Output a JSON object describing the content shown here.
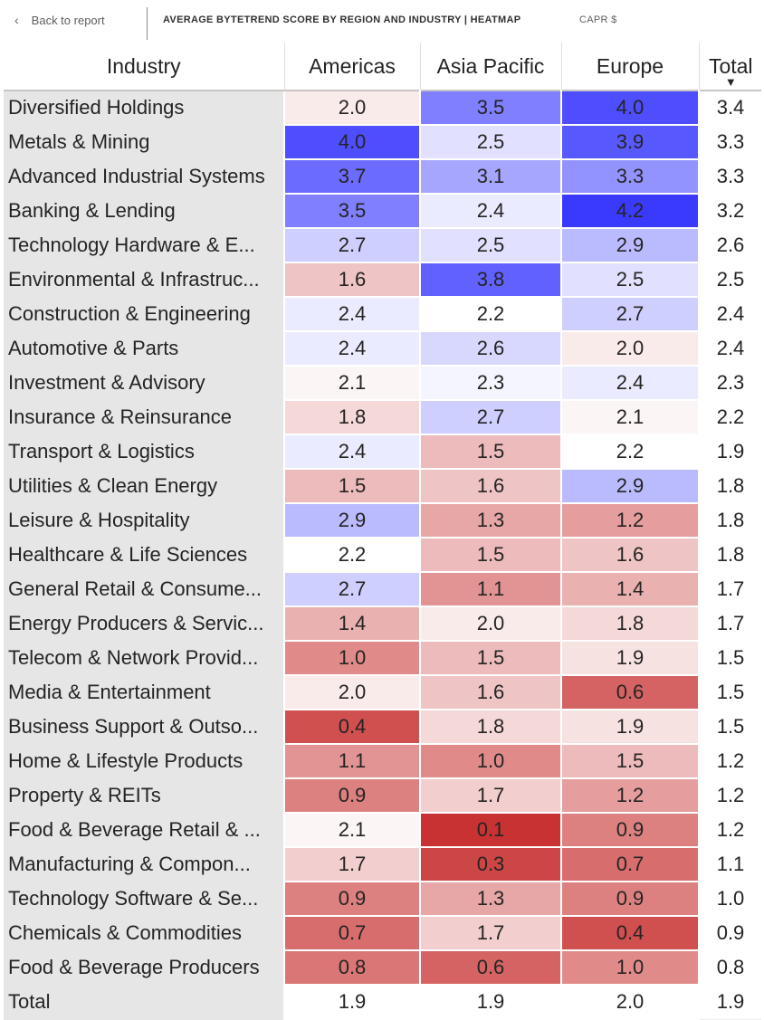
{
  "header": {
    "back_label": "Back to report",
    "back_icon": "chevron-left-icon",
    "title": "AVERAGE BYTETREND SCORE BY REGION AND INDUSTRY | HEATMAP",
    "subtitle": "CAPR $"
  },
  "table": {
    "columns": [
      "Industry",
      "Americas",
      "Asia Pacific",
      "Europe",
      "Total"
    ],
    "sort_icon": "sort-descending-icon",
    "sorted_column": "Total",
    "color_scale": {
      "min_color": "#c83232",
      "mid_color": "#ffffff",
      "max_color": "#3a3aff",
      "min": 0.1,
      "mid": 2.2,
      "max": 4.2
    },
    "rows": [
      {
        "industry": "Diversified Holdings",
        "americas": "2.0",
        "asia_pacific": "3.5",
        "europe": "4.0",
        "total": "3.4"
      },
      {
        "industry": "Metals & Mining",
        "americas": "4.0",
        "asia_pacific": "2.5",
        "europe": "3.9",
        "total": "3.3"
      },
      {
        "industry": "Advanced Industrial Systems",
        "americas": "3.7",
        "asia_pacific": "3.1",
        "europe": "3.3",
        "total": "3.3"
      },
      {
        "industry": "Banking & Lending",
        "americas": "3.5",
        "asia_pacific": "2.4",
        "europe": "4.2",
        "total": "3.2"
      },
      {
        "industry": "Technology Hardware & E...",
        "americas": "2.7",
        "asia_pacific": "2.5",
        "europe": "2.9",
        "total": "2.6"
      },
      {
        "industry": "Environmental & Infrastruc...",
        "americas": "1.6",
        "asia_pacific": "3.8",
        "europe": "2.5",
        "total": "2.5"
      },
      {
        "industry": "Construction & Engineering",
        "americas": "2.4",
        "asia_pacific": "2.2",
        "europe": "2.7",
        "total": "2.4"
      },
      {
        "industry": "Automotive & Parts",
        "americas": "2.4",
        "asia_pacific": "2.6",
        "europe": "2.0",
        "total": "2.4"
      },
      {
        "industry": "Investment & Advisory",
        "americas": "2.1",
        "asia_pacific": "2.3",
        "europe": "2.4",
        "total": "2.3"
      },
      {
        "industry": "Insurance & Reinsurance",
        "americas": "1.8",
        "asia_pacific": "2.7",
        "europe": "2.1",
        "total": "2.2"
      },
      {
        "industry": "Transport & Logistics",
        "americas": "2.4",
        "asia_pacific": "1.5",
        "europe": "2.2",
        "total": "1.9"
      },
      {
        "industry": "Utilities & Clean Energy",
        "americas": "1.5",
        "asia_pacific": "1.6",
        "europe": "2.9",
        "total": "1.8"
      },
      {
        "industry": "Leisure & Hospitality",
        "americas": "2.9",
        "asia_pacific": "1.3",
        "europe": "1.2",
        "total": "1.8"
      },
      {
        "industry": "Healthcare & Life Sciences",
        "americas": "2.2",
        "asia_pacific": "1.5",
        "europe": "1.6",
        "total": "1.8"
      },
      {
        "industry": "General Retail & Consume...",
        "americas": "2.7",
        "asia_pacific": "1.1",
        "europe": "1.4",
        "total": "1.7"
      },
      {
        "industry": "Energy Producers & Servic...",
        "americas": "1.4",
        "asia_pacific": "2.0",
        "europe": "1.8",
        "total": "1.7"
      },
      {
        "industry": "Telecom & Network Provid...",
        "americas": "1.0",
        "asia_pacific": "1.5",
        "europe": "1.9",
        "total": "1.5"
      },
      {
        "industry": "Media & Entertainment",
        "americas": "2.0",
        "asia_pacific": "1.6",
        "europe": "0.6",
        "total": "1.5"
      },
      {
        "industry": "Business Support & Outso...",
        "americas": "0.4",
        "asia_pacific": "1.8",
        "europe": "1.9",
        "total": "1.5"
      },
      {
        "industry": "Home & Lifestyle Products",
        "americas": "1.1",
        "asia_pacific": "1.0",
        "europe": "1.5",
        "total": "1.2"
      },
      {
        "industry": "Property & REITs",
        "americas": "0.9",
        "asia_pacific": "1.7",
        "europe": "1.2",
        "total": "1.2"
      },
      {
        "industry": "Food & Beverage Retail & ...",
        "americas": "2.1",
        "asia_pacific": "0.1",
        "europe": "0.9",
        "total": "1.2"
      },
      {
        "industry": "Manufacturing & Compon...",
        "americas": "1.7",
        "asia_pacific": "0.3",
        "europe": "0.7",
        "total": "1.1"
      },
      {
        "industry": "Technology Software & Se...",
        "americas": "0.9",
        "asia_pacific": "1.3",
        "europe": "0.9",
        "total": "1.0"
      },
      {
        "industry": "Chemicals & Commodities",
        "americas": "0.7",
        "asia_pacific": "1.7",
        "europe": "0.4",
        "total": "0.9"
      },
      {
        "industry": "Food & Beverage Producers",
        "americas": "0.8",
        "asia_pacific": "0.6",
        "europe": "1.0",
        "total": "0.8"
      }
    ],
    "total_row": {
      "industry": "Total",
      "americas": "1.9",
      "asia_pacific": "1.9",
      "europe": "2.0",
      "total": "1.9"
    }
  }
}
